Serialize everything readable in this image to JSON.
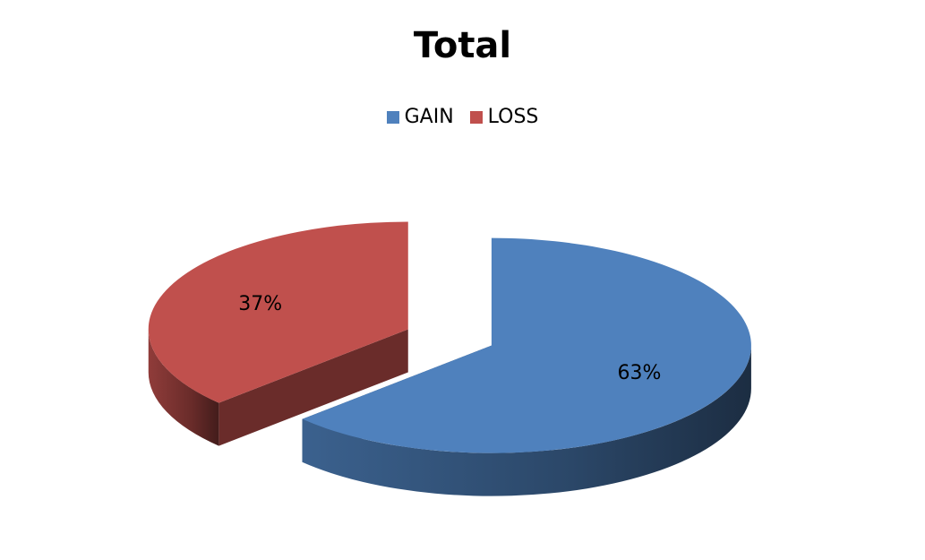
{
  "chart_data": {
    "type": "pie",
    "title": "Total",
    "legend_position": "top",
    "exploded": true,
    "three_d": true,
    "slices": [
      {
        "name": "GAIN",
        "value": 63,
        "label": "63%",
        "color": "#4F81BD"
      },
      {
        "name": "LOSS",
        "value": 37,
        "label": "37%",
        "color": "#C0504D"
      }
    ]
  }
}
